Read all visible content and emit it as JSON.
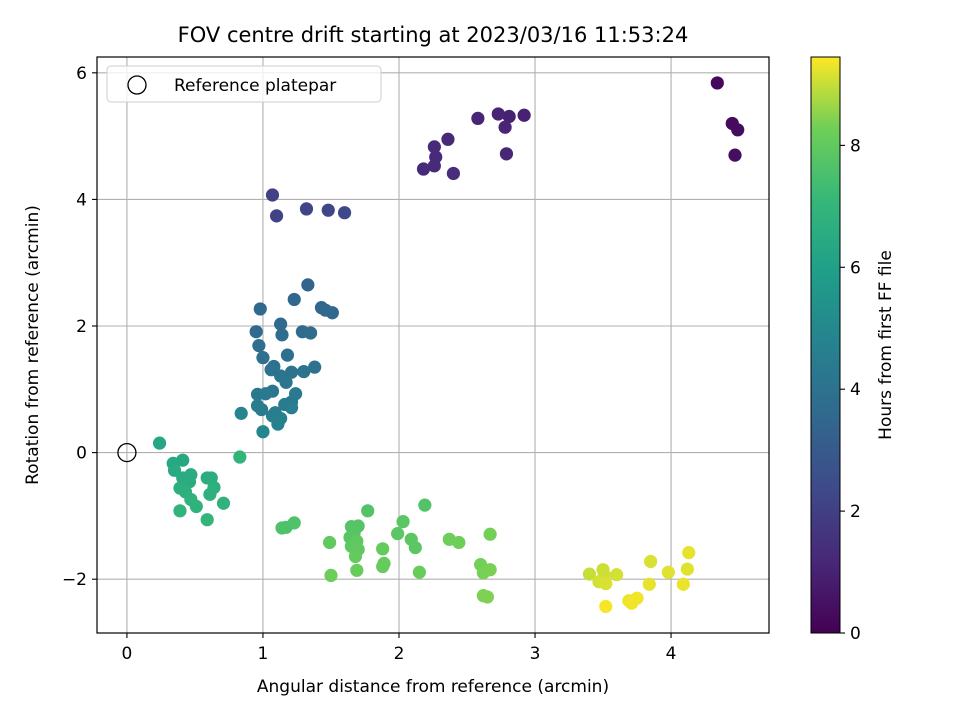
{
  "chart_data": {
    "type": "scatter",
    "title": "FOV centre drift starting at 2023/03/16 11:53:24",
    "xlabel": "Angular distance from reference (arcmin)",
    "ylabel": "Rotation from reference (arcmin)",
    "xlim": [
      -0.22,
      4.72
    ],
    "ylim": [
      -2.85,
      6.25
    ],
    "xticks": [
      0,
      1,
      2,
      3,
      4
    ],
    "yticks": [
      -2,
      0,
      2,
      4,
      6
    ],
    "ytick_labels": [
      "−2",
      "0",
      "2",
      "4",
      "6"
    ],
    "grid": true,
    "legend": {
      "placement": "top-left",
      "entries": [
        "Reference platepar"
      ]
    },
    "reference_point": {
      "x": 0,
      "y": 0,
      "label": "Reference platepar"
    },
    "colorbar": {
      "label": "Hours from first FF file",
      "range": [
        0,
        9.45
      ],
      "ticks": [
        0,
        2,
        4,
        6,
        8
      ],
      "colormap": "viridis"
    },
    "points": [
      {
        "x": 4.34,
        "y": 5.84,
        "c": 0.2
      },
      {
        "x": 4.45,
        "y": 5.2,
        "c": 0.3
      },
      {
        "x": 4.49,
        "y": 5.1,
        "c": 0.35
      },
      {
        "x": 4.47,
        "y": 4.7,
        "c": 0.4
      },
      {
        "x": 2.92,
        "y": 5.33,
        "c": 1.0
      },
      {
        "x": 2.81,
        "y": 5.31,
        "c": 1.0
      },
      {
        "x": 2.73,
        "y": 5.35,
        "c": 1.05
      },
      {
        "x": 2.78,
        "y": 5.14,
        "c": 1.1
      },
      {
        "x": 2.58,
        "y": 5.28,
        "c": 1.1
      },
      {
        "x": 2.79,
        "y": 4.72,
        "c": 1.15
      },
      {
        "x": 2.36,
        "y": 4.95,
        "c": 1.2
      },
      {
        "x": 2.26,
        "y": 4.83,
        "c": 1.25
      },
      {
        "x": 2.27,
        "y": 4.67,
        "c": 1.25
      },
      {
        "x": 2.26,
        "y": 4.53,
        "c": 1.3
      },
      {
        "x": 2.18,
        "y": 4.48,
        "c": 1.3
      },
      {
        "x": 2.4,
        "y": 4.41,
        "c": 1.35
      },
      {
        "x": 1.07,
        "y": 4.07,
        "c": 2.1
      },
      {
        "x": 1.1,
        "y": 3.74,
        "c": 2.15
      },
      {
        "x": 1.32,
        "y": 3.85,
        "c": 2.2
      },
      {
        "x": 1.48,
        "y": 3.83,
        "c": 2.25
      },
      {
        "x": 1.6,
        "y": 3.79,
        "c": 2.3
      },
      {
        "x": 1.33,
        "y": 2.65,
        "c": 3.4
      },
      {
        "x": 1.23,
        "y": 2.42,
        "c": 3.5
      },
      {
        "x": 1.43,
        "y": 2.29,
        "c": 3.5
      },
      {
        "x": 1.46,
        "y": 2.25,
        "c": 3.55
      },
      {
        "x": 1.51,
        "y": 2.21,
        "c": 3.55
      },
      {
        "x": 0.98,
        "y": 2.27,
        "c": 3.6
      },
      {
        "x": 1.13,
        "y": 2.03,
        "c": 3.65
      },
      {
        "x": 0.95,
        "y": 1.91,
        "c": 3.65
      },
      {
        "x": 1.29,
        "y": 1.91,
        "c": 3.7
      },
      {
        "x": 1.35,
        "y": 1.89,
        "c": 3.75
      },
      {
        "x": 1.14,
        "y": 1.86,
        "c": 3.75
      },
      {
        "x": 0.97,
        "y": 1.69,
        "c": 3.8
      },
      {
        "x": 1.18,
        "y": 1.54,
        "c": 3.85
      },
      {
        "x": 1.0,
        "y": 1.5,
        "c": 3.9
      },
      {
        "x": 1.08,
        "y": 1.36,
        "c": 3.95
      },
      {
        "x": 1.06,
        "y": 1.31,
        "c": 4.0
      },
      {
        "x": 1.38,
        "y": 1.35,
        "c": 4.0
      },
      {
        "x": 1.3,
        "y": 1.28,
        "c": 4.05
      },
      {
        "x": 1.21,
        "y": 1.27,
        "c": 4.1
      },
      {
        "x": 1.13,
        "y": 1.21,
        "c": 4.1
      },
      {
        "x": 1.17,
        "y": 1.11,
        "c": 4.15
      },
      {
        "x": 1.07,
        "y": 0.97,
        "c": 4.2
      },
      {
        "x": 0.96,
        "y": 0.92,
        "c": 4.25
      },
      {
        "x": 1.02,
        "y": 0.93,
        "c": 4.3
      },
      {
        "x": 1.24,
        "y": 0.93,
        "c": 4.3
      },
      {
        "x": 1.21,
        "y": 0.8,
        "c": 4.35
      },
      {
        "x": 1.16,
        "y": 0.76,
        "c": 4.4
      },
      {
        "x": 0.96,
        "y": 0.74,
        "c": 4.4
      },
      {
        "x": 0.99,
        "y": 0.68,
        "c": 4.45
      },
      {
        "x": 1.21,
        "y": 0.71,
        "c": 4.5
      },
      {
        "x": 1.09,
        "y": 0.63,
        "c": 4.55
      },
      {
        "x": 1.07,
        "y": 0.58,
        "c": 4.6
      },
      {
        "x": 1.13,
        "y": 0.54,
        "c": 4.65
      },
      {
        "x": 1.11,
        "y": 0.45,
        "c": 4.7
      },
      {
        "x": 0.84,
        "y": 0.62,
        "c": 4.8
      },
      {
        "x": 1.0,
        "y": 0.33,
        "c": 4.9
      },
      {
        "x": 0.24,
        "y": 0.15,
        "c": 6.3
      },
      {
        "x": 0.34,
        "y": -0.17,
        "c": 6.4
      },
      {
        "x": 0.41,
        "y": -0.12,
        "c": 6.4
      },
      {
        "x": 0.35,
        "y": -0.28,
        "c": 6.45
      },
      {
        "x": 0.41,
        "y": -0.4,
        "c": 6.5
      },
      {
        "x": 0.47,
        "y": -0.35,
        "c": 6.5
      },
      {
        "x": 0.46,
        "y": -0.46,
        "c": 6.55
      },
      {
        "x": 0.59,
        "y": -0.4,
        "c": 6.6
      },
      {
        "x": 0.62,
        "y": -0.4,
        "c": 6.6
      },
      {
        "x": 0.39,
        "y": -0.56,
        "c": 6.65
      },
      {
        "x": 0.64,
        "y": -0.55,
        "c": 6.7
      },
      {
        "x": 0.43,
        "y": -0.62,
        "c": 6.7
      },
      {
        "x": 0.61,
        "y": -0.66,
        "c": 6.75
      },
      {
        "x": 0.47,
        "y": -0.74,
        "c": 6.8
      },
      {
        "x": 0.51,
        "y": -0.85,
        "c": 6.85
      },
      {
        "x": 0.71,
        "y": -0.8,
        "c": 6.85
      },
      {
        "x": 0.39,
        "y": -0.92,
        "c": 6.9
      },
      {
        "x": 0.59,
        "y": -1.06,
        "c": 6.95
      },
      {
        "x": 0.83,
        "y": -0.07,
        "c": 7.0
      },
      {
        "x": 1.14,
        "y": -1.19,
        "c": 7.6
      },
      {
        "x": 1.17,
        "y": -1.18,
        "c": 7.6
      },
      {
        "x": 1.23,
        "y": -1.11,
        "c": 7.65
      },
      {
        "x": 1.77,
        "y": -0.92,
        "c": 7.7
      },
      {
        "x": 2.19,
        "y": -0.83,
        "c": 7.7
      },
      {
        "x": 1.65,
        "y": -1.17,
        "c": 7.75
      },
      {
        "x": 1.7,
        "y": -1.16,
        "c": 7.75
      },
      {
        "x": 1.67,
        "y": -1.27,
        "c": 7.8
      },
      {
        "x": 1.64,
        "y": -1.34,
        "c": 7.8
      },
      {
        "x": 2.03,
        "y": -1.09,
        "c": 7.85
      },
      {
        "x": 1.99,
        "y": -1.28,
        "c": 7.85
      },
      {
        "x": 2.09,
        "y": -1.37,
        "c": 7.9
      },
      {
        "x": 2.12,
        "y": -1.5,
        "c": 7.9
      },
      {
        "x": 1.69,
        "y": -1.4,
        "c": 7.95
      },
      {
        "x": 1.65,
        "y": -1.48,
        "c": 7.95
      },
      {
        "x": 1.7,
        "y": -1.53,
        "c": 8.0
      },
      {
        "x": 1.49,
        "y": -1.42,
        "c": 8.0
      },
      {
        "x": 1.88,
        "y": -1.52,
        "c": 8.05
      },
      {
        "x": 1.68,
        "y": -1.64,
        "c": 8.05
      },
      {
        "x": 1.89,
        "y": -1.75,
        "c": 8.1
      },
      {
        "x": 1.88,
        "y": -1.8,
        "c": 8.1
      },
      {
        "x": 1.69,
        "y": -1.86,
        "c": 8.15
      },
      {
        "x": 2.15,
        "y": -1.89,
        "c": 8.15
      },
      {
        "x": 1.5,
        "y": -1.94,
        "c": 8.2
      },
      {
        "x": 2.37,
        "y": -1.37,
        "c": 8.25
      },
      {
        "x": 2.44,
        "y": -1.42,
        "c": 8.25
      },
      {
        "x": 2.67,
        "y": -1.29,
        "c": 8.3
      },
      {
        "x": 2.6,
        "y": -1.77,
        "c": 8.3
      },
      {
        "x": 2.62,
        "y": -1.9,
        "c": 8.35
      },
      {
        "x": 2.67,
        "y": -1.85,
        "c": 8.35
      },
      {
        "x": 2.62,
        "y": -2.26,
        "c": 8.4
      },
      {
        "x": 2.65,
        "y": -2.28,
        "c": 8.4
      },
      {
        "x": 3.4,
        "y": -1.92,
        "c": 9.0
      },
      {
        "x": 3.5,
        "y": -1.85,
        "c": 9.05
      },
      {
        "x": 3.51,
        "y": -1.94,
        "c": 9.05
      },
      {
        "x": 3.6,
        "y": -1.93,
        "c": 9.1
      },
      {
        "x": 3.47,
        "y": -2.04,
        "c": 9.1
      },
      {
        "x": 3.52,
        "y": -2.07,
        "c": 9.15
      },
      {
        "x": 3.85,
        "y": -1.72,
        "c": 9.15
      },
      {
        "x": 3.98,
        "y": -1.89,
        "c": 9.2
      },
      {
        "x": 4.12,
        "y": -1.84,
        "c": 9.2
      },
      {
        "x": 4.13,
        "y": -1.58,
        "c": 9.25
      },
      {
        "x": 3.84,
        "y": -2.08,
        "c": 9.25
      },
      {
        "x": 4.09,
        "y": -2.08,
        "c": 9.3
      },
      {
        "x": 3.69,
        "y": -2.34,
        "c": 9.3
      },
      {
        "x": 3.75,
        "y": -2.3,
        "c": 9.35
      },
      {
        "x": 3.71,
        "y": -2.38,
        "c": 9.35
      },
      {
        "x": 3.52,
        "y": -2.43,
        "c": 9.4
      }
    ]
  }
}
